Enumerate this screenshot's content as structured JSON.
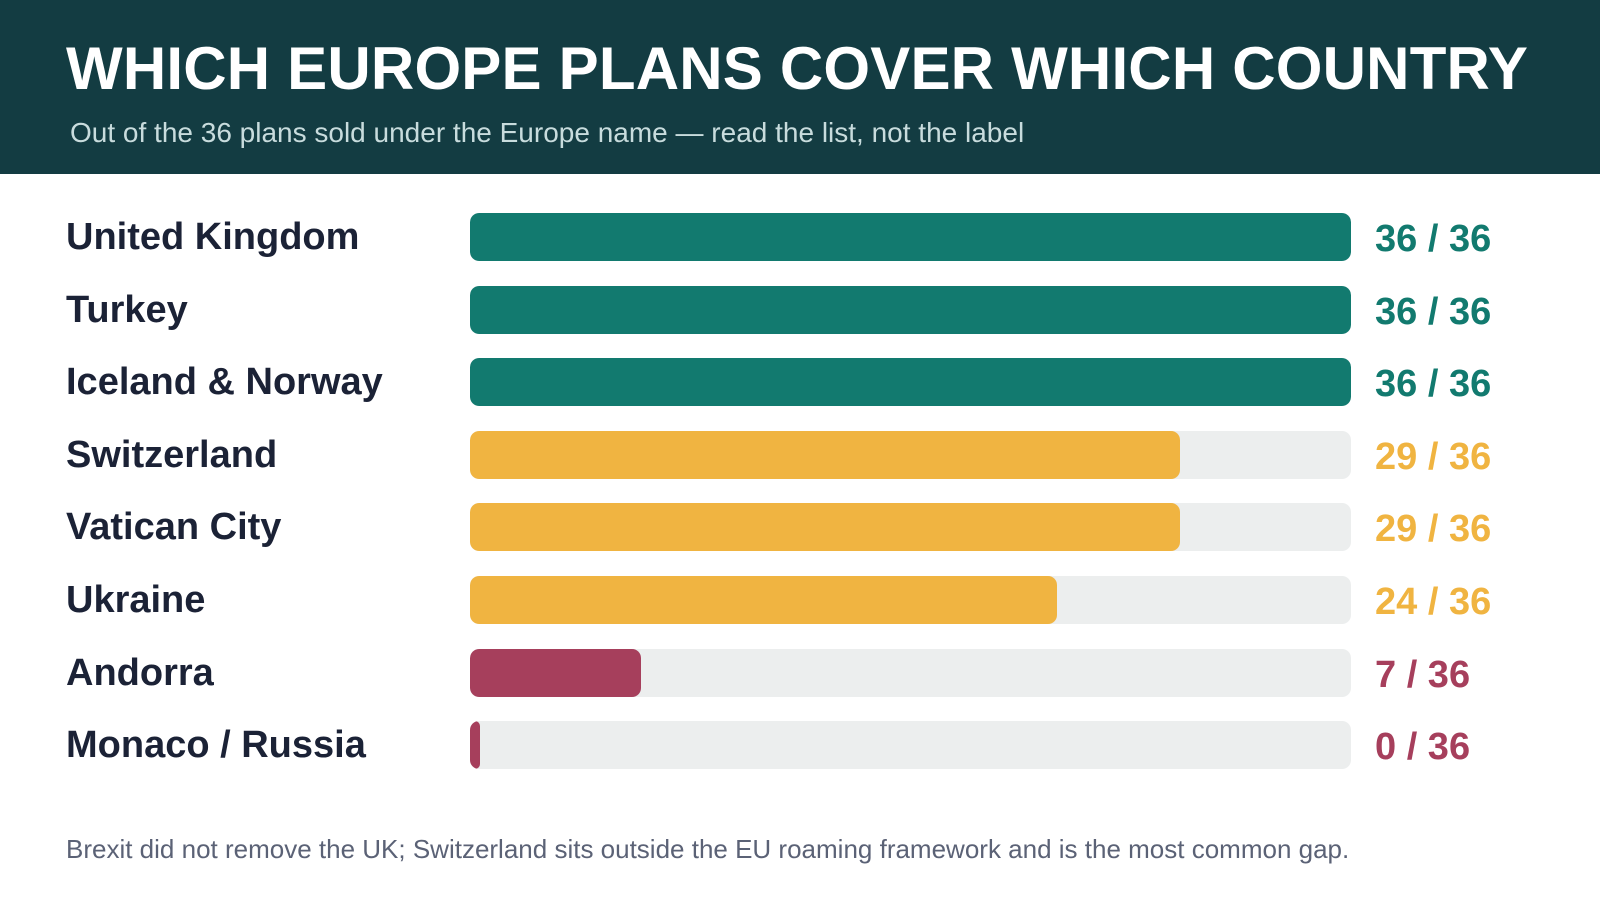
{
  "header": {
    "title": "WHICH EUROPE PLANS COVER WHICH COUNTRY",
    "subtitle": "Out of the 36 plans sold under the Europe name — read the list, not the label"
  },
  "colors": {
    "header_bg": "#133c42",
    "full": "#127a6f",
    "partial": "#f0b441",
    "low": "#a63f5c",
    "track": "#eceeee"
  },
  "chart_data": {
    "type": "bar",
    "orientation": "horizontal",
    "title": "WHICH EUROPE PLANS COVER WHICH COUNTRY",
    "subtitle": "Out of the 36 plans sold under the Europe name — read the list, not the label",
    "total": 36,
    "xlim": [
      0,
      36
    ],
    "grid": false,
    "categories": [
      "United Kingdom",
      "Turkey",
      "Iceland & Norway",
      "Switzerland",
      "Vatican City",
      "Ukraine",
      "Andorra",
      "Monaco / Russia"
    ],
    "values": [
      36,
      36,
      36,
      29,
      29,
      24,
      7,
      0
    ],
    "value_labels": [
      "36 / 36",
      "36 / 36",
      "36 / 36",
      "29 / 36",
      "29 / 36",
      "24 / 36",
      "7 / 36",
      "0 / 36"
    ],
    "color_groups": [
      "full",
      "full",
      "full",
      "partial",
      "partial",
      "partial",
      "low",
      "low"
    ]
  },
  "footnote": "Brexit did not remove the UK; Switzerland sits outside the EU roaming framework and is the most common gap."
}
